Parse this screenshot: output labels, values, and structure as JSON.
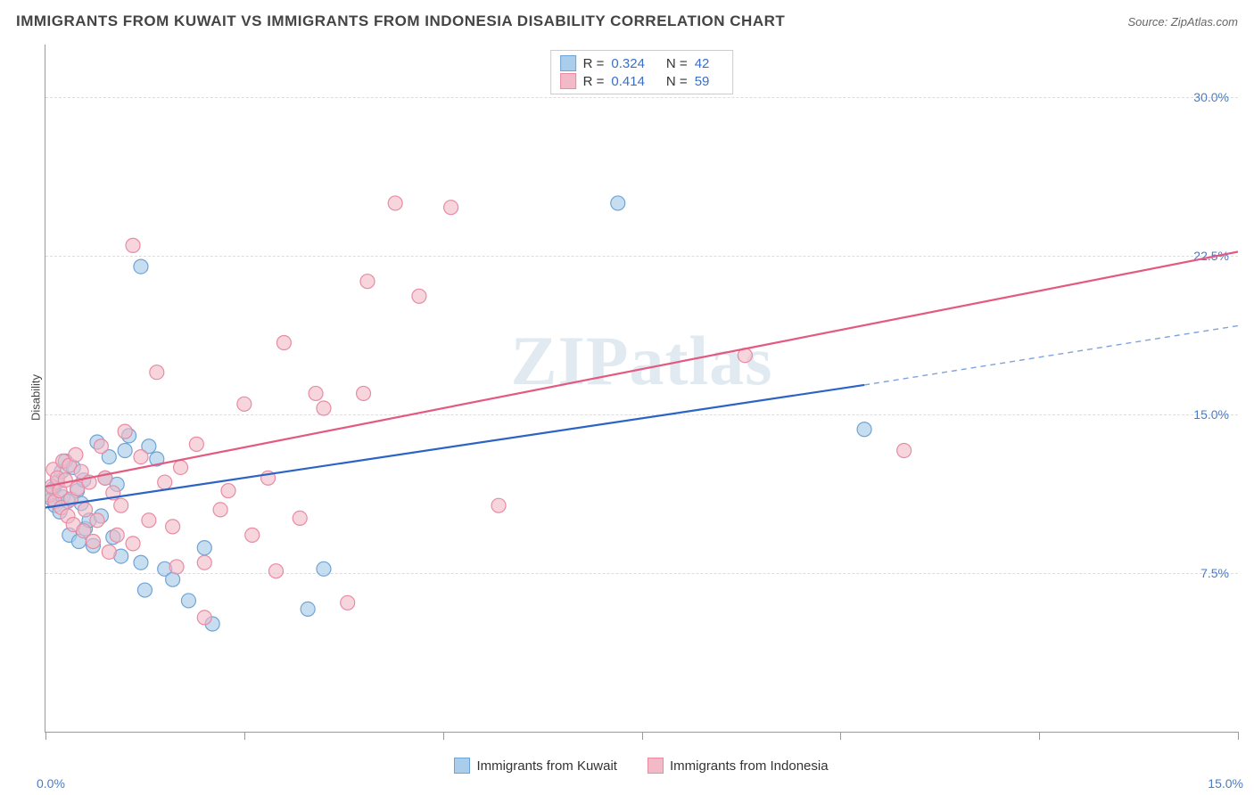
{
  "header": {
    "title": "IMMIGRANTS FROM KUWAIT VS IMMIGRANTS FROM INDONESIA DISABILITY CORRELATION CHART",
    "source": "Source: ZipAtlas.com"
  },
  "watermark": "ZIPatlas",
  "chart": {
    "type": "scatter",
    "ylabel": "Disability",
    "xlim": [
      0,
      15
    ],
    "ylim": [
      0,
      32.5
    ],
    "x_ticks": [
      0,
      2.5,
      5,
      7.5,
      10,
      12.5,
      15
    ],
    "x_tick_labels_shown": {
      "0": "0.0%",
      "15": "15.0%"
    },
    "y_gridlines": [
      7.5,
      15.0,
      22.5,
      30.0
    ],
    "y_tick_labels": {
      "7.5": "7.5%",
      "15.0": "15.0%",
      "22.5": "22.5%",
      "30.0": "30.0%"
    },
    "background_color": "#ffffff",
    "grid_color": "#dddddd",
    "axis_color": "#999999",
    "tick_label_color": "#4a7bc8",
    "series": [
      {
        "name": "kuwait",
        "label": "Immigrants from Kuwait",
        "marker_fill": "#a9cdea",
        "marker_stroke": "#6fa3d6",
        "marker_fill_opacity": 0.65,
        "line_color": "#2b64c5",
        "line_width": 2.2,
        "R": "0.324",
        "N": "42",
        "regression": {
          "x1": 0,
          "y1": 10.6,
          "x2": 10.3,
          "y2": 16.4,
          "x2_dash": 15,
          "y2_dash": 19.2
        },
        "points": [
          [
            0.05,
            11.3
          ],
          [
            0.08,
            11.0
          ],
          [
            0.1,
            11.5
          ],
          [
            0.12,
            10.7
          ],
          [
            0.15,
            11.8
          ],
          [
            0.18,
            10.4
          ],
          [
            0.2,
            12.3
          ],
          [
            0.22,
            11.1
          ],
          [
            0.25,
            12.8
          ],
          [
            0.28,
            10.9
          ],
          [
            0.3,
            9.3
          ],
          [
            0.35,
            12.5
          ],
          [
            0.4,
            11.4
          ],
          [
            0.42,
            9.0
          ],
          [
            0.45,
            10.8
          ],
          [
            0.48,
            11.9
          ],
          [
            0.5,
            9.6
          ],
          [
            0.55,
            10.0
          ],
          [
            0.6,
            8.8
          ],
          [
            0.65,
            13.7
          ],
          [
            0.7,
            10.2
          ],
          [
            0.75,
            12.0
          ],
          [
            0.8,
            13.0
          ],
          [
            0.85,
            9.2
          ],
          [
            0.9,
            11.7
          ],
          [
            0.95,
            8.3
          ],
          [
            1.0,
            13.3
          ],
          [
            1.05,
            14.0
          ],
          [
            1.2,
            8.0
          ],
          [
            1.3,
            13.5
          ],
          [
            1.4,
            12.9
          ],
          [
            1.5,
            7.7
          ],
          [
            1.6,
            7.2
          ],
          [
            1.8,
            6.2
          ],
          [
            2.0,
            8.7
          ],
          [
            2.1,
            5.1
          ],
          [
            1.2,
            22.0
          ],
          [
            3.3,
            5.8
          ],
          [
            3.5,
            7.7
          ],
          [
            7.2,
            25.0
          ],
          [
            10.3,
            14.3
          ],
          [
            1.25,
            6.7
          ]
        ]
      },
      {
        "name": "indonesia",
        "label": "Immigrants from Indonesia",
        "marker_fill": "#f2b9c7",
        "marker_stroke": "#e88ba3",
        "marker_fill_opacity": 0.6,
        "line_color": "#e35a80",
        "line_width": 2.2,
        "R": "0.414",
        "N": "59",
        "regression": {
          "x1": 0,
          "y1": 11.6,
          "x2": 15,
          "y2": 22.7
        },
        "points": [
          [
            0.05,
            11.2
          ],
          [
            0.08,
            11.6
          ],
          [
            0.1,
            12.4
          ],
          [
            0.12,
            10.9
          ],
          [
            0.15,
            12.0
          ],
          [
            0.18,
            11.4
          ],
          [
            0.2,
            10.6
          ],
          [
            0.22,
            12.8
          ],
          [
            0.25,
            11.9
          ],
          [
            0.28,
            10.2
          ],
          [
            0.3,
            12.6
          ],
          [
            0.32,
            11.0
          ],
          [
            0.35,
            9.8
          ],
          [
            0.38,
            13.1
          ],
          [
            0.4,
            11.5
          ],
          [
            0.45,
            12.3
          ],
          [
            0.48,
            9.5
          ],
          [
            0.5,
            10.5
          ],
          [
            0.55,
            11.8
          ],
          [
            0.6,
            9.0
          ],
          [
            0.65,
            10.0
          ],
          [
            0.7,
            13.5
          ],
          [
            0.75,
            12.0
          ],
          [
            0.8,
            8.5
          ],
          [
            0.85,
            11.3
          ],
          [
            0.9,
            9.3
          ],
          [
            0.95,
            10.7
          ],
          [
            1.0,
            14.2
          ],
          [
            1.1,
            8.9
          ],
          [
            1.2,
            13.0
          ],
          [
            1.3,
            10.0
          ],
          [
            1.4,
            17.0
          ],
          [
            1.5,
            11.8
          ],
          [
            1.1,
            23.0
          ],
          [
            1.6,
            9.7
          ],
          [
            1.65,
            7.8
          ],
          [
            1.7,
            12.5
          ],
          [
            1.9,
            13.6
          ],
          [
            2.0,
            8.0
          ],
          [
            2.0,
            5.4
          ],
          [
            2.2,
            10.5
          ],
          [
            2.3,
            11.4
          ],
          [
            2.5,
            15.5
          ],
          [
            2.6,
            9.3
          ],
          [
            2.8,
            12.0
          ],
          [
            2.9,
            7.6
          ],
          [
            3.0,
            18.4
          ],
          [
            3.2,
            10.1
          ],
          [
            3.4,
            16.0
          ],
          [
            3.5,
            15.3
          ],
          [
            3.8,
            6.1
          ],
          [
            4.0,
            16.0
          ],
          [
            4.05,
            21.3
          ],
          [
            4.4,
            25.0
          ],
          [
            4.7,
            20.6
          ],
          [
            5.1,
            24.8
          ],
          [
            5.7,
            10.7
          ],
          [
            8.8,
            17.8
          ],
          [
            10.8,
            13.3
          ]
        ]
      }
    ],
    "legend_swatches": {
      "kuwait": {
        "fill": "#a9cdea",
        "stroke": "#6fa3d6"
      },
      "indonesia": {
        "fill": "#f2b9c7",
        "stroke": "#e88ba3"
      }
    },
    "legend_top_labels": {
      "R": "R =",
      "N": "N ="
    }
  }
}
